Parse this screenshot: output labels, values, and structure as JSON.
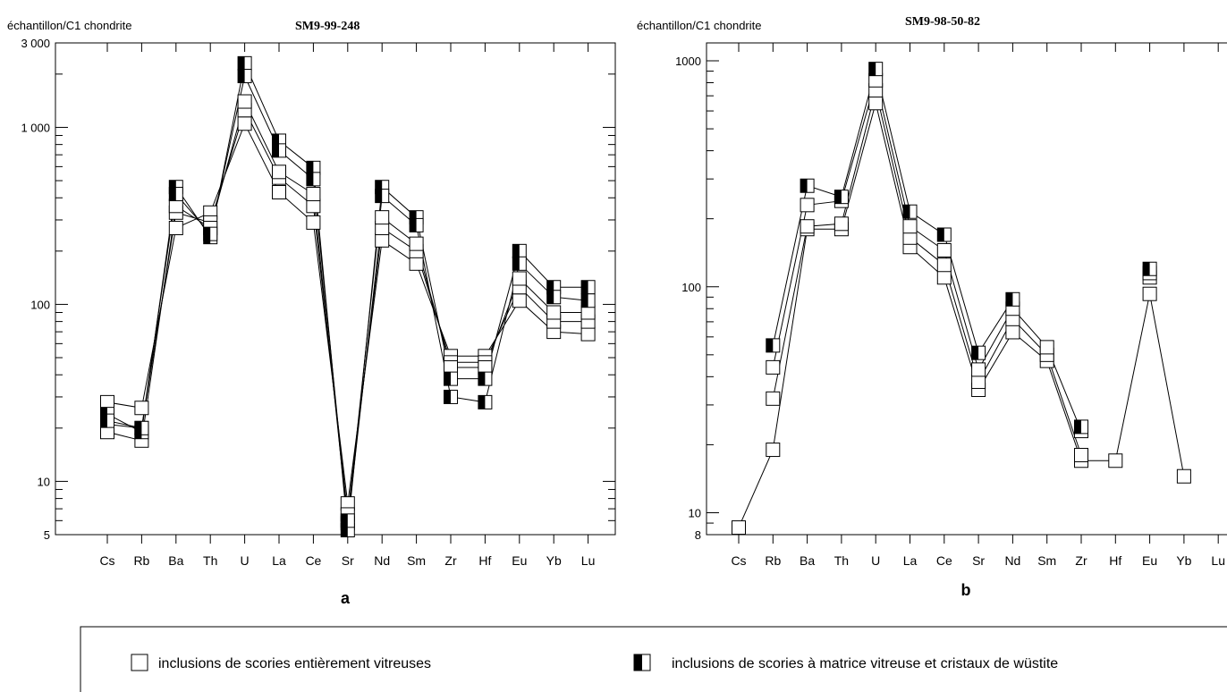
{
  "chart_data": [
    {
      "type": "line",
      "panel_label": "a",
      "title": "SM9-99-248",
      "ylabel": "échantillon/C1 chondrite",
      "yscale": "log",
      "ylim": [
        5,
        3000
      ],
      "ytick_labels": [
        "3 000",
        "1 000",
        "100",
        "10",
        "5"
      ],
      "ytick_values": [
        3000,
        1000,
        100,
        10,
        5
      ],
      "categories": [
        "Cs",
        "Rb",
        "Ba",
        "Th",
        "U",
        "La",
        "Ce",
        "Sr",
        "Nd",
        "Sm",
        "Zr",
        "Hf",
        "Eu",
        "Yb",
        "Lu"
      ],
      "series": [
        {
          "marker": "open",
          "values": [
            28,
            26,
            270,
            330,
            1050,
            430,
            290,
            7.5,
            230,
            170,
            51,
            51,
            105,
            70,
            68
          ]
        },
        {
          "marker": "open",
          "values": [
            21,
            20,
            330,
            290,
            1250,
            520,
            360,
            6.5,
            270,
            200,
            47,
            47,
            125,
            80,
            80
          ]
        },
        {
          "marker": "open",
          "values": [
            19,
            17,
            360,
            270,
            1400,
            560,
            420,
            5.8,
            310,
            220,
            44,
            44,
            140,
            90,
            90
          ]
        },
        {
          "marker": "half",
          "values": [
            24,
            19,
            460,
            240,
            2300,
            840,
            590,
            5.3,
            460,
            310,
            38,
            38,
            200,
            125,
            125
          ]
        },
        {
          "marker": "half",
          "values": [
            22,
            20,
            420,
            250,
            1950,
            740,
            510,
            6.0,
            410,
            280,
            30,
            28,
            170,
            110,
            105
          ]
        }
      ]
    },
    {
      "type": "line",
      "panel_label": "b",
      "title": "SM9-98-50-82",
      "ylabel": "échantillon/C1 chondrite",
      "yscale": "log",
      "ylim": [
        8,
        1000
      ],
      "ytick_labels": [
        "1000",
        "100",
        "10",
        "8"
      ],
      "ytick_values": [
        1000,
        100,
        10,
        8
      ],
      "categories": [
        "Cs",
        "Rb",
        "Ba",
        "Th",
        "U",
        "La",
        "Ce",
        "Sr",
        "Nd",
        "Sm",
        "Zr",
        "Hf",
        "Eu",
        "Yb",
        "Lu"
      ],
      "series": [
        {
          "marker": "open",
          "values": [
            8.6,
            19,
            180,
            180,
            650,
            150,
            110,
            35,
            63,
            47,
            17,
            17,
            93,
            14.5,
            null
          ]
        },
        {
          "marker": "open",
          "values": [
            null,
            32,
            185,
            190,
            740,
            165,
            125,
            38,
            72,
            50,
            18,
            null,
            110,
            null,
            null
          ]
        },
        {
          "marker": "open",
          "values": [
            null,
            44,
            230,
            240,
            820,
            185,
            145,
            43,
            80,
            54,
            23,
            null,
            115,
            null,
            null
          ]
        },
        {
          "marker": "half",
          "values": [
            null,
            55,
            280,
            250,
            920,
            215,
            170,
            51,
            88,
            null,
            24,
            null,
            120,
            null,
            null
          ]
        }
      ]
    }
  ],
  "legend": {
    "items": [
      {
        "marker": "open",
        "label": "inclusions de scories entièrement vitreuses"
      },
      {
        "marker": "half",
        "label": "inclusions de scories à matrice vitreuse et cristaux de wüstite"
      }
    ]
  }
}
